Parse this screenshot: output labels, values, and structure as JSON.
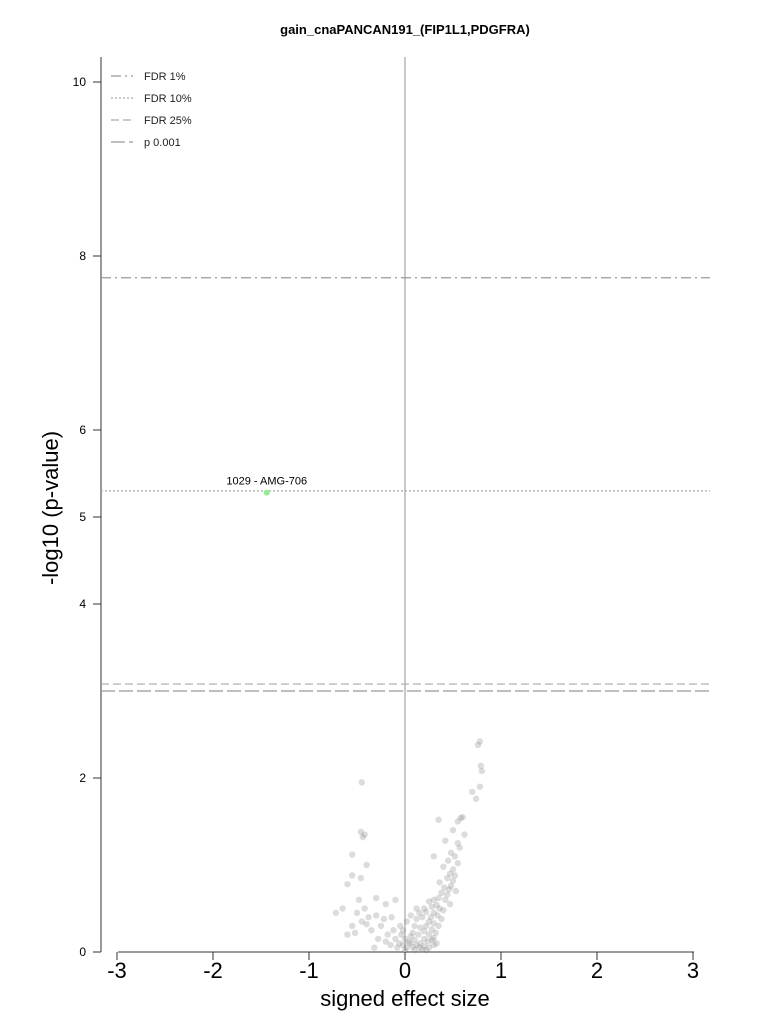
{
  "chart_data": {
    "type": "scatter",
    "title": "gain_cnaPANCAN191_(FIP1L1,PDGFRA)",
    "xlabel": "signed effect size",
    "ylabel": "-log10 (p-value)",
    "xlim": [
      -3.1,
      3.1
    ],
    "ylim": [
      0,
      10
    ],
    "x_ticks": [
      "-3",
      "-2",
      "-1",
      "0",
      "1",
      "2",
      "3"
    ],
    "y_ticks": [
      "0",
      "2",
      "4",
      "5",
      "6",
      "8",
      "10"
    ],
    "legend_position": "top-left",
    "thresholds": [
      {
        "name": "FDR 1%",
        "value": 7.75,
        "style": "dashdot",
        "color": "#999999"
      },
      {
        "name": "FDR 10%",
        "value": 5.3,
        "style": "dotted",
        "color": "#aaaaaa"
      },
      {
        "name": "FDR 25%",
        "value": 3.08,
        "style": "dashed",
        "color": "#aaaaaa"
      },
      {
        "name": "p 0.001",
        "value": 3.0,
        "style": "longdash",
        "color": "#999999"
      }
    ],
    "highlight": {
      "label": "1029 - AMG-706",
      "x": -1.44,
      "y": 5.28,
      "color": "#90ee90"
    },
    "points": [
      [
        0.78,
        2.42
      ],
      [
        0.76,
        2.38
      ],
      [
        0.79,
        2.14
      ],
      [
        0.8,
        2.08
      ],
      [
        0.78,
        1.9
      ],
      [
        0.7,
        1.84
      ],
      [
        0.74,
        1.76
      ],
      [
        0.6,
        1.55
      ],
      [
        0.58,
        1.54
      ],
      [
        0.55,
        1.5
      ],
      [
        0.5,
        1.4
      ],
      [
        0.62,
        1.35
      ],
      [
        0.35,
        1.52
      ],
      [
        0.42,
        1.28
      ],
      [
        0.55,
        1.25
      ],
      [
        0.57,
        1.2
      ],
      [
        0.48,
        1.14
      ],
      [
        0.52,
        1.1
      ],
      [
        0.3,
        1.1
      ],
      [
        0.45,
        1.05
      ],
      [
        0.55,
        1.02
      ],
      [
        0.5,
        0.95
      ],
      [
        0.4,
        0.98
      ],
      [
        0.47,
        0.9
      ],
      [
        0.52,
        0.88
      ],
      [
        0.44,
        0.85
      ],
      [
        0.5,
        0.82
      ],
      [
        0.36,
        0.8
      ],
      [
        0.48,
        0.76
      ],
      [
        0.41,
        0.74
      ],
      [
        0.46,
        0.72
      ],
      [
        0.53,
        0.7
      ],
      [
        0.38,
        0.68
      ],
      [
        0.44,
        0.66
      ],
      [
        0.35,
        0.62
      ],
      [
        0.3,
        0.6
      ],
      [
        0.25,
        0.58
      ],
      [
        0.42,
        0.6
      ],
      [
        0.47,
        0.55
      ],
      [
        0.33,
        0.54
      ],
      [
        0.28,
        0.52
      ],
      [
        0.2,
        0.5
      ],
      [
        0.36,
        0.5
      ],
      [
        0.4,
        0.48
      ],
      [
        0.22,
        0.46
      ],
      [
        0.3,
        0.45
      ],
      [
        0.15,
        0.45
      ],
      [
        0.34,
        0.42
      ],
      [
        0.27,
        0.4
      ],
      [
        0.18,
        0.4
      ],
      [
        0.38,
        0.38
      ],
      [
        0.25,
        0.35
      ],
      [
        0.12,
        0.38
      ],
      [
        0.3,
        0.33
      ],
      [
        0.22,
        0.3
      ],
      [
        0.35,
        0.3
      ],
      [
        0.1,
        0.3
      ],
      [
        0.16,
        0.28
      ],
      [
        0.28,
        0.26
      ],
      [
        0.2,
        0.24
      ],
      [
        0.08,
        0.22
      ],
      [
        0.32,
        0.22
      ],
      [
        0.25,
        0.2
      ],
      [
        0.14,
        0.2
      ],
      [
        0.06,
        0.18
      ],
      [
        0.3,
        0.16
      ],
      [
        0.2,
        0.15
      ],
      [
        0.1,
        0.14
      ],
      [
        0.24,
        0.12
      ],
      [
        0.16,
        0.1
      ],
      [
        0.05,
        0.1
      ],
      [
        0.12,
        0.08
      ],
      [
        0.2,
        0.07
      ],
      [
        0.08,
        0.06
      ],
      [
        0.15,
        0.05
      ],
      [
        0.25,
        0.05
      ],
      [
        0.02,
        0.05
      ],
      [
        0.18,
        0.03
      ],
      [
        0.1,
        0.02
      ],
      [
        0.22,
        0.02
      ],
      [
        0.3,
        0.08
      ],
      [
        0.33,
        0.1
      ],
      [
        0.28,
        0.14
      ],
      [
        0.04,
        0.12
      ],
      [
        -0.02,
        0.08
      ],
      [
        -0.06,
        0.1
      ],
      [
        -0.1,
        0.15
      ],
      [
        -0.04,
        0.2
      ],
      [
        -0.12,
        0.25
      ],
      [
        -0.08,
        0.05
      ],
      [
        -0.15,
        0.08
      ],
      [
        -0.2,
        0.12
      ],
      [
        -0.18,
        0.2
      ],
      [
        -0.25,
        0.3
      ],
      [
        -0.22,
        0.38
      ],
      [
        -0.3,
        0.42
      ],
      [
        -0.05,
        0.3
      ],
      [
        -0.14,
        0.4
      ],
      [
        -0.28,
        0.15
      ],
      [
        -0.32,
        0.05
      ],
      [
        -0.35,
        0.25
      ],
      [
        -0.4,
        0.32
      ],
      [
        -0.38,
        0.4
      ],
      [
        -0.45,
        0.35
      ],
      [
        -0.42,
        0.5
      ],
      [
        -0.5,
        0.45
      ],
      [
        -0.48,
        0.6
      ],
      [
        -0.2,
        0.55
      ],
      [
        -0.3,
        0.62
      ],
      [
        -0.1,
        0.6
      ],
      [
        -0.55,
        0.3
      ],
      [
        -0.6,
        0.2
      ],
      [
        -0.52,
        0.22
      ],
      [
        -0.46,
        0.85
      ],
      [
        -0.4,
        1.0
      ],
      [
        -0.55,
        0.88
      ],
      [
        -0.6,
        0.78
      ],
      [
        -0.42,
        1.35
      ],
      [
        -0.46,
        1.38
      ],
      [
        -0.44,
        1.32
      ],
      [
        -0.55,
        1.12
      ],
      [
        -0.45,
        1.95
      ],
      [
        -0.65,
        0.5
      ],
      [
        -0.72,
        0.45
      ],
      [
        0.0,
        0.02
      ],
      [
        0.02,
        0.35
      ],
      [
        0.06,
        0.42
      ],
      [
        0.12,
        0.5
      ],
      [
        0.0,
        0.15
      ],
      [
        -0.02,
        0.25
      ]
    ]
  }
}
